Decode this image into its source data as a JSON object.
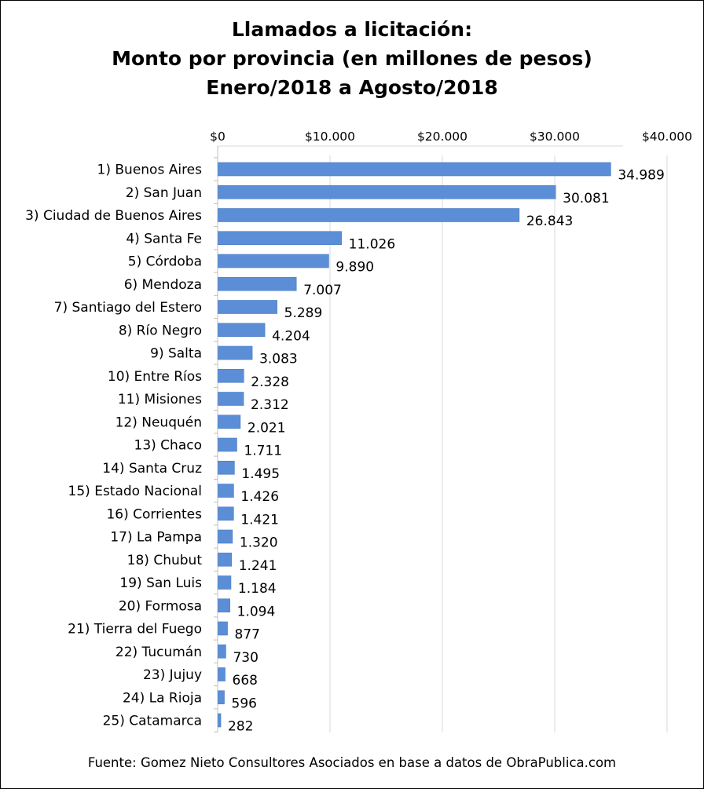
{
  "chart_data": {
    "type": "bar",
    "orientation": "horizontal",
    "title": "Llamados a licitación:",
    "subtitle": "Monto por provincia (en millones de pesos)",
    "period": "Enero/2018 a Agosto/2018",
    "xlabel": "",
    "ylabel": "",
    "xlim": [
      0,
      40000
    ],
    "grid": true,
    "legend": "none",
    "bar_color": "#5B8ED6",
    "tick_labels": [
      "$0",
      "$10.000",
      "$20.000",
      "$30.000",
      "$40.000"
    ],
    "tick_values": [
      0,
      10000,
      20000,
      30000,
      40000
    ],
    "categories": [
      "1) Buenos Aires",
      "2) San Juan",
      "3) Ciudad de Buenos Aires",
      "4) Santa Fe",
      "5) Córdoba",
      "6) Mendoza",
      "7) Santiago del Estero",
      "8) Río Negro",
      "9) Salta",
      "10) Entre Ríos",
      "11) Misiones",
      "12) Neuquén",
      "13) Chaco",
      "14) Santa Cruz",
      "15) Estado Nacional",
      "16) Corrientes",
      "17) La Pampa",
      "18) Chubut",
      "19) San Luis",
      "20) Formosa",
      "21) Tierra del Fuego",
      "22) Tucumán",
      "23) Jujuy",
      "24) La Rioja",
      "25) Catamarca"
    ],
    "values": [
      34989,
      30081,
      26843,
      11026,
      9890,
      7007,
      5289,
      4204,
      3083,
      2328,
      2312,
      2021,
      1711,
      1495,
      1426,
      1421,
      1320,
      1241,
      1184,
      1094,
      877,
      730,
      668,
      596,
      282
    ],
    "value_labels": [
      "34.989",
      "30.081",
      "26.843",
      "11.026",
      "9.890",
      "7.007",
      "5.289",
      "4.204",
      "3.083",
      "2.328",
      "2.312",
      "2.021",
      "1.711",
      "1.495",
      "1.426",
      "1.421",
      "1.320",
      "1.241",
      "1.184",
      "1.094",
      "877",
      "730",
      "668",
      "596",
      "282"
    ]
  },
  "source": "Fuente: Gomez Nieto Consultores Asociados en base a datos de ObraPublica.com"
}
